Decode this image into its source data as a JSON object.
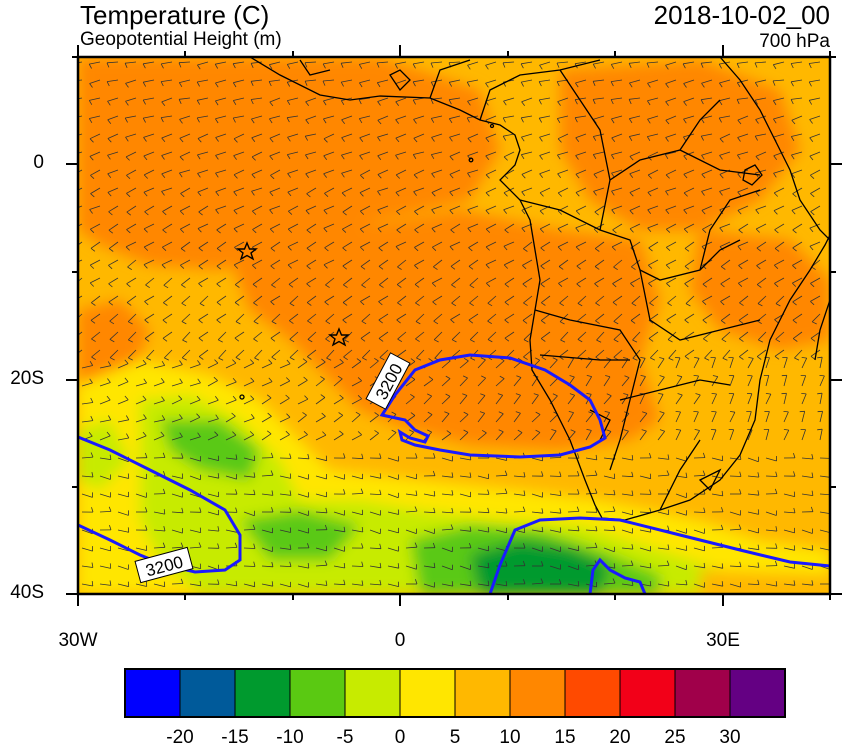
{
  "header": {
    "title": "Temperature (C)",
    "subtitle": "Geopotential Height (m)",
    "valid_time": "2018-10-02_00",
    "level": "700 hPa"
  },
  "map": {
    "projection": "lat-lon",
    "lon_range": [
      -30,
      40
    ],
    "lat_range": [
      -40,
      10
    ],
    "lat_ticks": [
      {
        "value": 0,
        "label": "0"
      },
      {
        "value": -20,
        "label": "20S"
      },
      {
        "value": -40,
        "label": "40S"
      }
    ],
    "lon_ticks": [
      {
        "value": -30,
        "label": "30W"
      },
      {
        "value": 0,
        "label": "0"
      },
      {
        "value": 30,
        "label": "30E"
      }
    ],
    "contour_labels": [
      {
        "text": "3200"
      },
      {
        "text": "3200"
      }
    ],
    "star_markers": 2
  },
  "colorbar": {
    "colors": [
      "#0000ff",
      "#005a9a",
      "#009a2e",
      "#5ac912",
      "#c7eb00",
      "#ffe600",
      "#ffb800",
      "#ff8700",
      "#ff4a00",
      "#f20018",
      "#a0004a",
      "#640083"
    ],
    "labels": [
      "-20",
      "-15",
      "-10",
      "-5",
      "0",
      "5",
      "10",
      "15",
      "20",
      "25",
      "30"
    ]
  },
  "colors": {
    "height_contour": "#1a1aff",
    "coastline": "#000000"
  }
}
